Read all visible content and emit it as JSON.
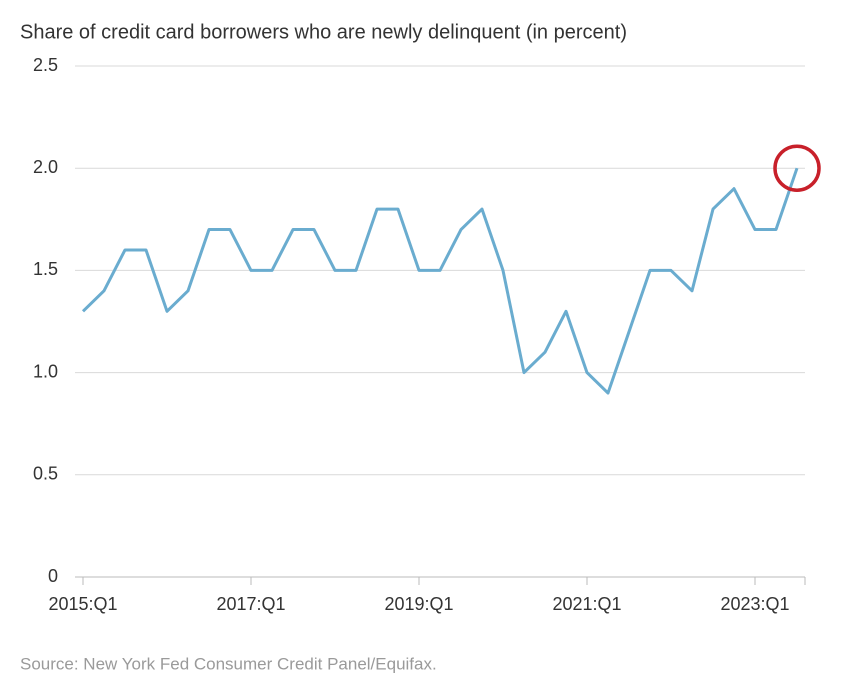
{
  "chart_data": {
    "type": "line",
    "title": "Share of credit card borrowers who are newly delinquent (in percent)",
    "source": "Source: New York Fed Consumer Credit Panel/Equifax.",
    "categories": [
      "2015:Q1",
      null,
      null,
      null,
      null,
      null,
      null,
      null,
      "2017:Q1",
      null,
      null,
      null,
      null,
      null,
      null,
      null,
      "2019:Q1",
      null,
      null,
      null,
      null,
      null,
      null,
      null,
      "2021:Q1",
      null,
      null,
      null,
      null,
      null,
      null,
      null,
      "2023:Q1",
      null,
      null
    ],
    "values": [
      1.3,
      1.4,
      1.6,
      1.6,
      1.3,
      1.4,
      1.7,
      1.7,
      1.5,
      1.5,
      1.7,
      1.7,
      1.5,
      1.5,
      1.8,
      1.8,
      1.5,
      1.5,
      1.7,
      1.8,
      1.5,
      1.0,
      1.1,
      1.3,
      1.0,
      0.9,
      1.2,
      1.5,
      1.5,
      1.4,
      1.8,
      1.9,
      1.7,
      1.7,
      2.0
    ],
    "color": "#6aaccf",
    "ylim": [
      0,
      2.5
    ],
    "yticks": [
      0,
      0.5,
      {
        "value": 1.0,
        "label": "1.0"
      },
      1.5,
      {
        "value": 2.0,
        "label": "2.0"
      },
      2.5
    ],
    "grid": true,
    "highlight_color": "#c8202a"
  }
}
